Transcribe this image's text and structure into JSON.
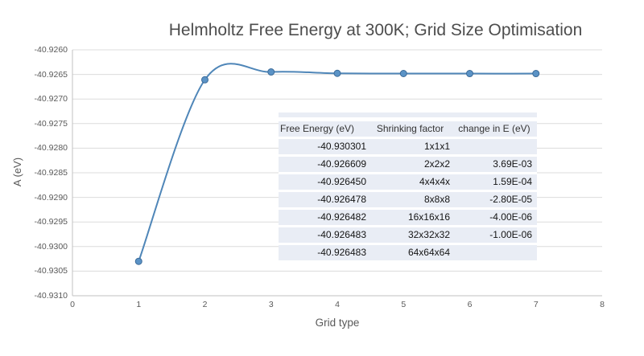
{
  "chart_data": {
    "type": "line",
    "title": "Helmholtz Free Energy at 300K; Grid Size Optimisation",
    "xlabel": "Grid type",
    "ylabel": "A (eV)",
    "x": [
      1,
      2,
      3,
      4,
      5,
      6,
      7
    ],
    "y": [
      -40.930301,
      -40.926609,
      -40.92645,
      -40.926478,
      -40.926482,
      -40.926483,
      -40.926483
    ],
    "xlim": [
      0,
      8
    ],
    "ylim": [
      -40.931,
      -40.926
    ],
    "x_tick_values": [
      0,
      1,
      2,
      3,
      4,
      5,
      6,
      7,
      8
    ],
    "x_tick_labels": [
      "0",
      "1",
      "2",
      "3",
      "4",
      "5",
      "6",
      "7",
      "8"
    ],
    "y_tick_values": [
      -40.926,
      -40.9265,
      -40.927,
      -40.9275,
      -40.928,
      -40.9285,
      -40.929,
      -40.9295,
      -40.93,
      -40.9305,
      -40.931
    ],
    "y_tick_labels": [
      "-40.9260",
      "-40.9265",
      "-40.9270",
      "-40.9275",
      "-40.9280",
      "-40.9285",
      "-40.9290",
      "-40.9295",
      "-40.9300",
      "-40.9305",
      "-40.9310"
    ],
    "grid": "horizontal",
    "legend": "none",
    "smooth": true,
    "marker": "circle"
  },
  "table": {
    "headers": [
      "Free Energy (eV)",
      "Shrinking factor",
      "change in E (eV)"
    ],
    "rows": [
      [
        "-40.930301",
        "1x1x1",
        ""
      ],
      [
        "-40.926609",
        "2x2x2",
        "3.69E-03"
      ],
      [
        "-40.926450",
        "4x4x4x",
        "1.59E-04"
      ],
      [
        "-40.926478",
        "8x8x8",
        "-2.80E-05"
      ],
      [
        "-40.926482",
        "16x16x16",
        "-4.00E-06"
      ],
      [
        "-40.926483",
        "32x32x32",
        "-1.00E-06"
      ],
      [
        "-40.926483",
        "64x64x64",
        ""
      ]
    ]
  },
  "colors": {
    "line": "#4F86B8",
    "marker_fill": "#5B93C6",
    "marker_edge": "#3C6B99",
    "grid": "#DCDCDC",
    "axis": "#C2C2C2",
    "table_fill": "#E9EDF5",
    "tick_text": "#595959",
    "title_text": "#4D4D4D"
  }
}
